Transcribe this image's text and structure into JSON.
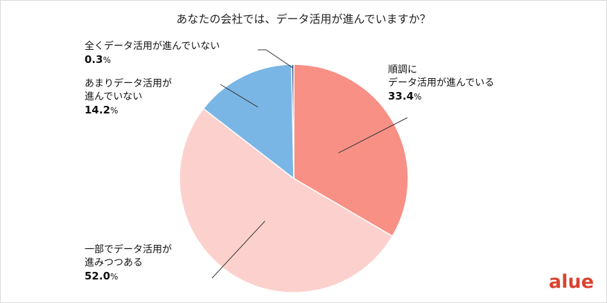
{
  "chart_data": {
    "type": "pie",
    "title": "あなたの会社では、データ活用が進んでいますか？",
    "unit": "%",
    "slices": [
      {
        "label_lines": [
          "順調に",
          "データ活用が進んでいる"
        ],
        "value": 33.4,
        "display": "33.4",
        "color": "#f89086"
      },
      {
        "label_lines": [
          "一部でデータ活用が",
          "進みつつある"
        ],
        "value": 52.0,
        "display": "52.0",
        "color": "#fcd1cd"
      },
      {
        "label_lines": [
          "あまりデータ活用が",
          "進んでいない"
        ],
        "value": 14.2,
        "display": "14.2",
        "color": "#7ab6e5"
      },
      {
        "label_lines": [
          "全くデータ活用が進んでいない"
        ],
        "value": 0.3,
        "display": "0.3",
        "color": "#2b4e8c"
      }
    ]
  },
  "brand": {
    "logo_text": "alue",
    "color": "#d9432f"
  }
}
